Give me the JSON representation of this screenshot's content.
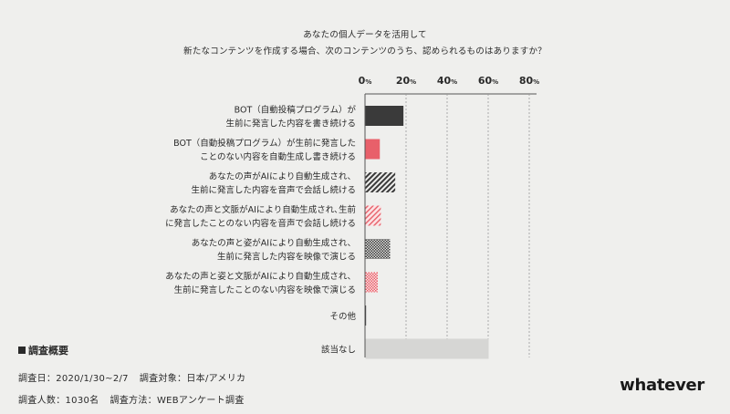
{
  "title": {
    "line1": "あなたの個人データを活用して",
    "line2": "新たなコンテンツを作成する場合、次のコンテンツのうち、認められるものはありますか？"
  },
  "chart_data": {
    "type": "bar",
    "orientation": "horizontal",
    "xlim": [
      0,
      80
    ],
    "xticks": [
      0,
      20,
      40,
      60,
      80
    ],
    "tick_suffix": "%",
    "grid": true,
    "categories": [
      [
        "BOT（自動投稿プログラム）が",
        "生前に発言した内容を書き続ける"
      ],
      [
        "BOT（自動投稿プログラム）が生前に発言した",
        "ことのない内容を自動生成し書き続ける"
      ],
      [
        "あなたの声がAIにより自動生成され、",
        "生前に発言した内容を音声で会話し続ける"
      ],
      [
        "あなたの声と文脈がAIにより自動生成され､生前",
        "に発言したことのない内容を音声で会話し続ける"
      ],
      [
        "あなたの声と姿がAIにより自動生成され、",
        "生前に発言した内容を映像で演じる"
      ],
      [
        "あなたの声と姿と文脈がAIにより自動生成され、",
        "生前に発言したことのない内容を映像で演じる"
      ],
      [
        "その他"
      ],
      [
        "該当なし"
      ]
    ],
    "values": [
      18.5,
      7,
      14.5,
      7.5,
      12,
      6,
      0.3,
      60
    ],
    "styles": [
      "solid-dark",
      "solid-red",
      "hatch-dark",
      "hatch-red",
      "check-dark",
      "check-red",
      "solid-dark",
      "solid-gray"
    ]
  },
  "colors": {
    "dark": "#3a3a3a",
    "red": "#e8606a",
    "gray": "#d6d6d4",
    "grid": "#9a9a9a"
  },
  "info": {
    "heading": "調査概要",
    "date": "調査日：2020/1/30~2/7",
    "target": "調査対象：日本/アメリカ",
    "count": "調査人数：1030名",
    "method": "調査方法：WEBアンケート調査"
  },
  "brand": "whatever"
}
